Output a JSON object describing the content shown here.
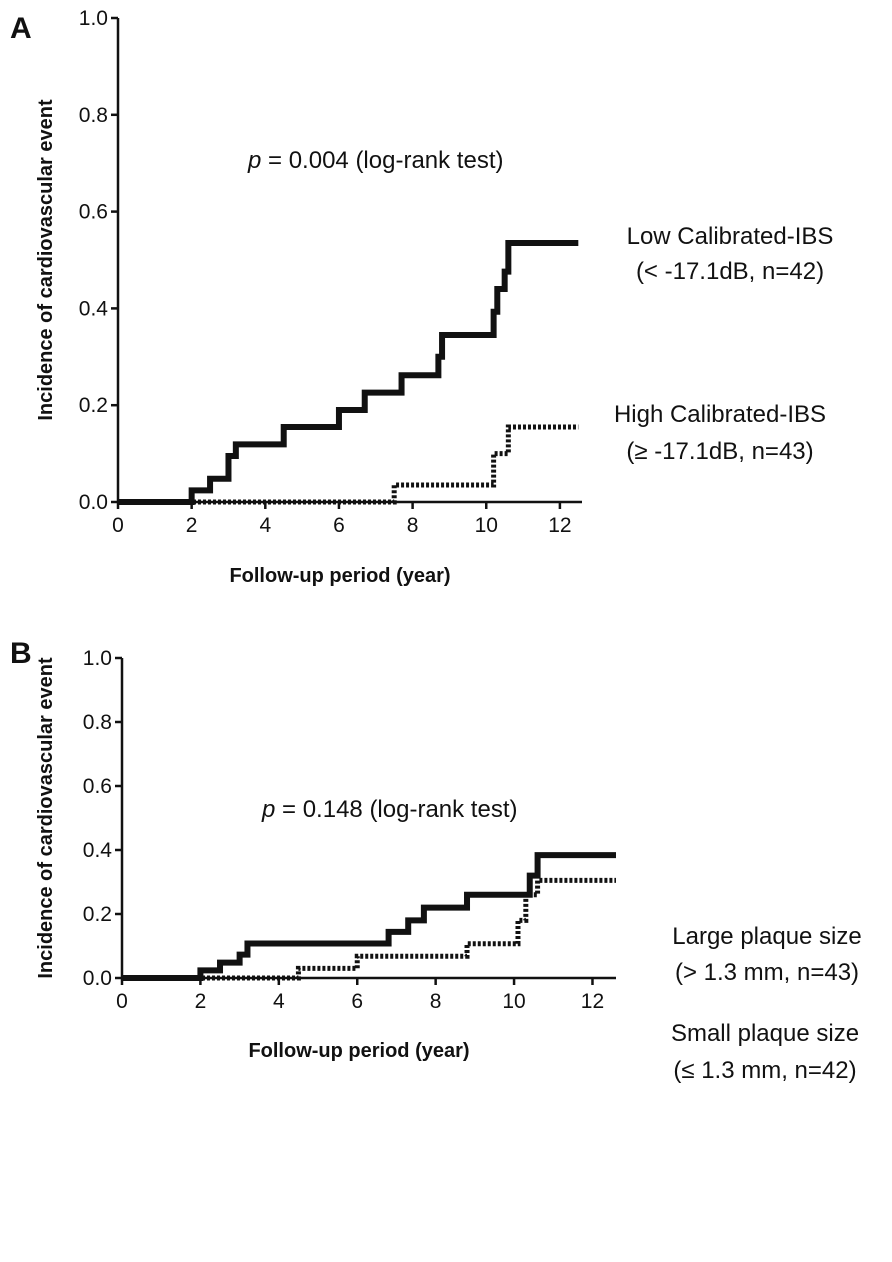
{
  "chart_data": [
    {
      "panel": "A",
      "type": "line",
      "step": true,
      "xlabel": "Follow-up period (year)",
      "ylabel": "Incidence of cardiovascular event",
      "xlim": [
        0,
        12.6
      ],
      "ylim": [
        0,
        1.0
      ],
      "xticks": [
        "0",
        "2",
        "4",
        "6",
        "8",
        "10",
        "12"
      ],
      "yticks": [
        "0.0",
        "0.2",
        "0.4",
        "0.6",
        "0.8",
        "1.0"
      ],
      "annotation": {
        "p_symbol": "p",
        "p_text": " = 0.004 (log-rank test)"
      },
      "grid": false,
      "series": [
        {
          "name_line1": "Low Calibrated-IBS",
          "name_line2": "(< -17.1dB, n=42)",
          "style": "solid",
          "color": "#111111",
          "points": [
            [
              0,
              0
            ],
            [
              2.0,
              0.024
            ],
            [
              2.5,
              0.048
            ],
            [
              3.0,
              0.095
            ],
            [
              3.2,
              0.119
            ],
            [
              4.5,
              0.155
            ],
            [
              6.0,
              0.19
            ],
            [
              6.7,
              0.226
            ],
            [
              7.7,
              0.262
            ],
            [
              8.7,
              0.3
            ],
            [
              8.8,
              0.345
            ],
            [
              10.2,
              0.393
            ],
            [
              10.3,
              0.44
            ],
            [
              10.5,
              0.476
            ],
            [
              10.6,
              0.535
            ],
            [
              12.5,
              0.535
            ]
          ]
        },
        {
          "name_line1": "High Calibrated-IBS",
          "name_line2": "(≥ -17.1dB, n=43)",
          "style": "dashed",
          "color": "#111111",
          "points": [
            [
              0,
              0
            ],
            [
              7.5,
              0.035
            ],
            [
              10.2,
              0.1
            ],
            [
              10.6,
              0.155
            ],
            [
              12.5,
              0.155
            ]
          ]
        }
      ]
    },
    {
      "panel": "B",
      "type": "line",
      "step": true,
      "xlabel": "Follow-up period (year)",
      "ylabel": "Incidence of cardiovascular event",
      "xlim": [
        0,
        12.6
      ],
      "ylim": [
        0,
        1.0
      ],
      "xticks": [
        "0",
        "2",
        "4",
        "6",
        "8",
        "10",
        "12"
      ],
      "yticks": [
        "0.0",
        "0.2",
        "0.4",
        "0.6",
        "0.8",
        "1.0"
      ],
      "annotation": {
        "p_symbol": "p",
        "p_text": " = 0.148 (log-rank test)"
      },
      "grid": false,
      "series": [
        {
          "name_line1": "Large plaque size",
          "name_line2": "(> 1.3 mm, n=43)",
          "style": "solid",
          "color": "#111111",
          "points": [
            [
              0,
              0
            ],
            [
              2.0,
              0.024
            ],
            [
              2.5,
              0.048
            ],
            [
              3.0,
              0.073
            ],
            [
              3.2,
              0.108
            ],
            [
              6.8,
              0.144
            ],
            [
              7.3,
              0.18
            ],
            [
              7.7,
              0.22
            ],
            [
              8.8,
              0.26
            ],
            [
              10.4,
              0.32
            ],
            [
              10.6,
              0.384
            ],
            [
              12.6,
              0.384
            ]
          ]
        },
        {
          "name_line1": "Small plaque size",
          "name_line2": "(≤ 1.3 mm, n=42)",
          "style": "dashed",
          "color": "#111111",
          "points": [
            [
              0,
              0
            ],
            [
              4.5,
              0.03
            ],
            [
              6.0,
              0.068
            ],
            [
              8.8,
              0.107
            ],
            [
              10.1,
              0.18
            ],
            [
              10.3,
              0.26
            ],
            [
              10.6,
              0.305
            ],
            [
              12.6,
              0.305
            ]
          ]
        }
      ]
    }
  ]
}
